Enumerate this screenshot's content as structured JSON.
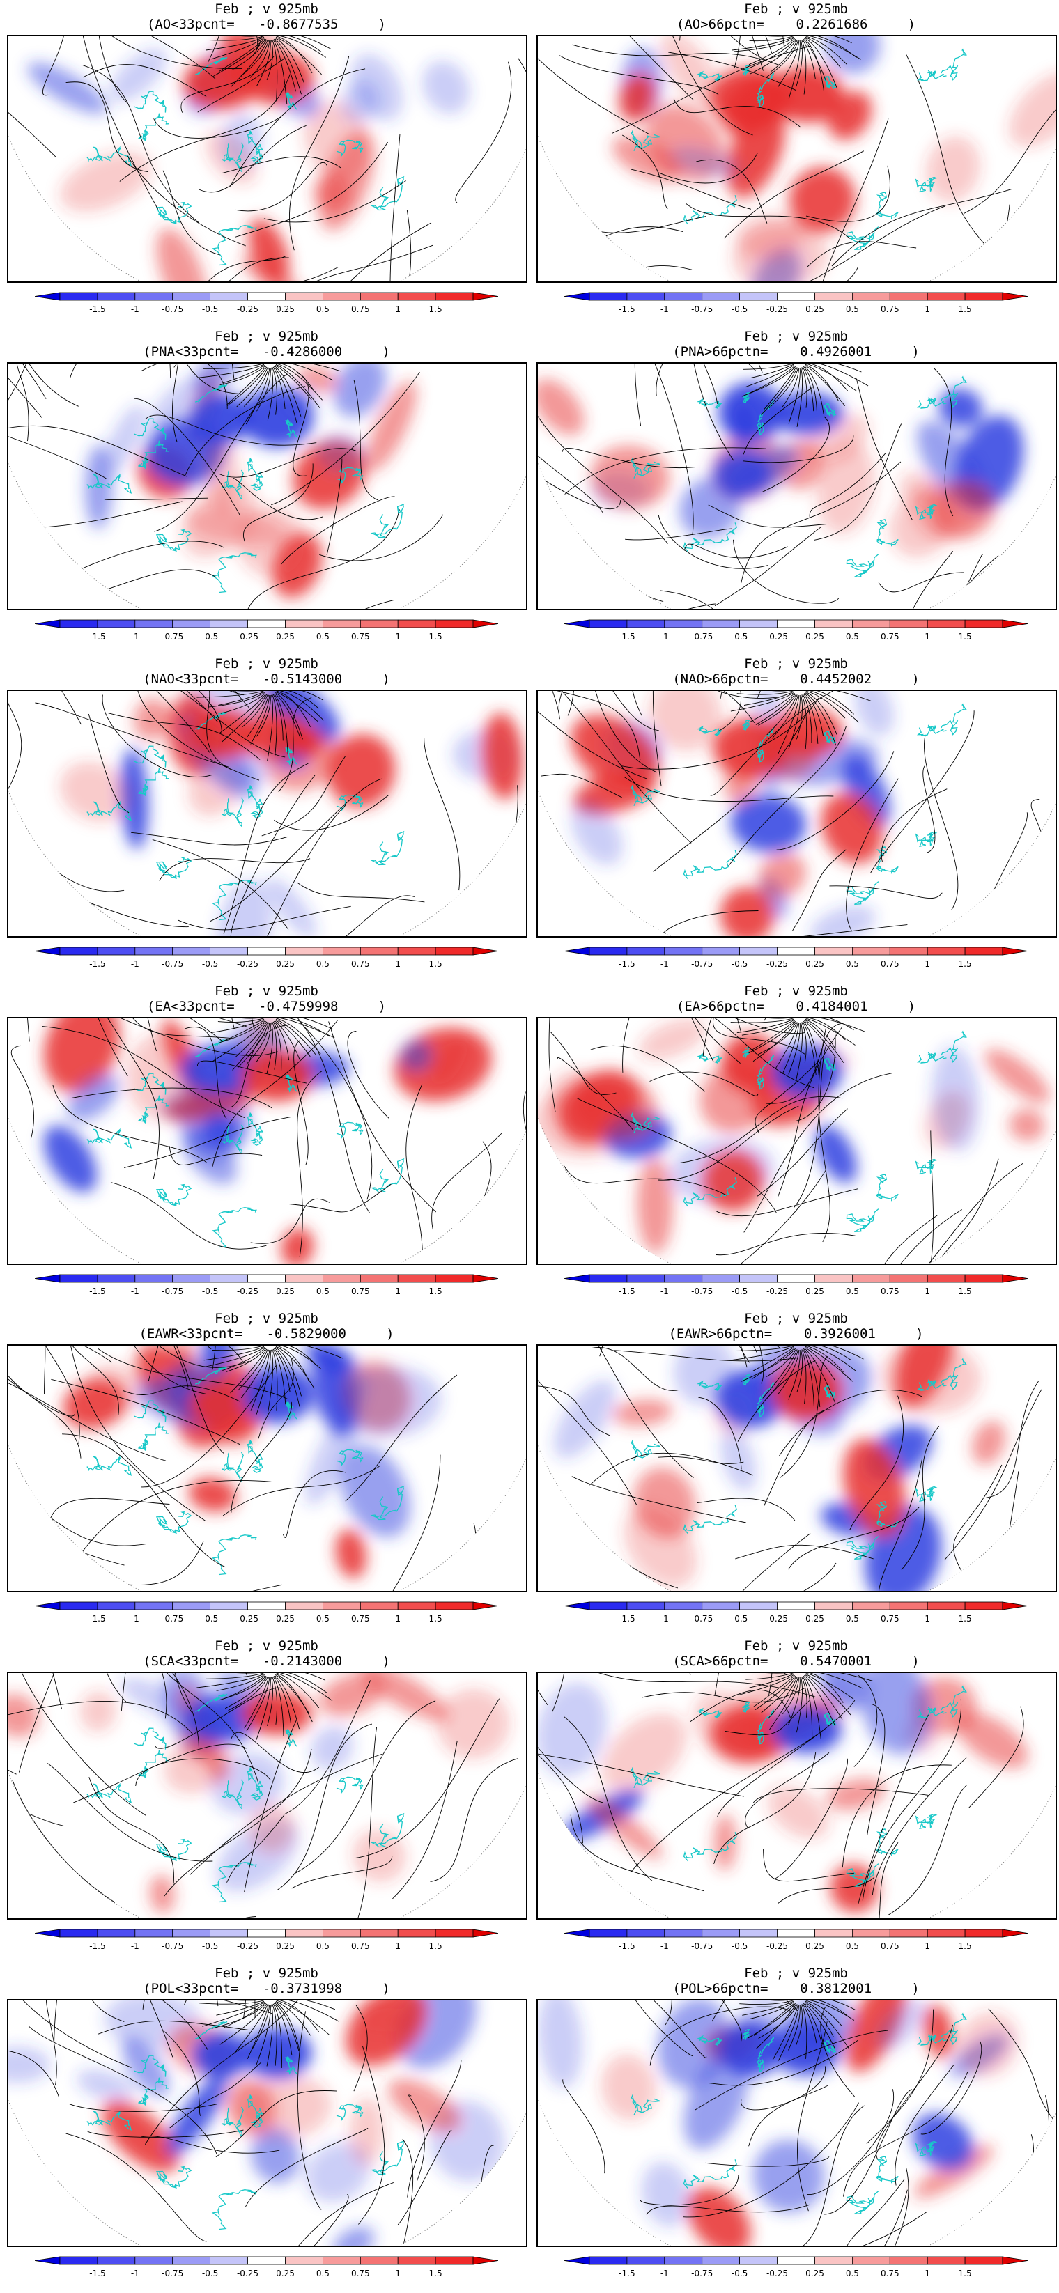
{
  "colorbar": {
    "tick_labels": [
      "-1.5",
      "-1",
      "-0.75",
      "-0.5",
      "-0.25",
      "0.25",
      "0.5",
      "0.75",
      "1",
      "1.5"
    ],
    "bin_colors": [
      "#2a2af0",
      "#4d4df2",
      "#7373f4",
      "#9b9bf6",
      "#c4c4f9",
      "#ffffff",
      "#fac4c4",
      "#f79b9b",
      "#f47373",
      "#f24d4d",
      "#f02a2a"
    ],
    "arrow_left_color": "#0000e0",
    "arrow_right_color": "#e00000"
  },
  "map_colors": {
    "streamline": "#000000",
    "coastline": "#18c8c8",
    "positive": "#e83030",
    "negative": "#2f3fe0"
  },
  "panels": [
    {
      "line1": "Feb ; v 925mb",
      "line2": "(AO<33pcnt=   -0.8677535     )"
    },
    {
      "line1": "Feb ; v 925mb",
      "line2": "(AO>66pctn=    0.2261686     )"
    },
    {
      "line1": "Feb ; v 925mb",
      "line2": "(PNA<33pcnt=   -0.4286000     )"
    },
    {
      "line1": "Feb ; v 925mb",
      "line2": "(PNA>66pctn=    0.4926001     )"
    },
    {
      "line1": "Feb ; v 925mb",
      "line2": "(NAO<33pcnt=   -0.5143000     )"
    },
    {
      "line1": "Feb ; v 925mb",
      "line2": "(NAO>66pctn=    0.4452002     )"
    },
    {
      "line1": "Feb ; v 925mb",
      "line2": "(EA<33pcnt=   -0.4759998     )"
    },
    {
      "line1": "Feb ; v 925mb",
      "line2": "(EA>66pctn=    0.4184001     )"
    },
    {
      "line1": "Feb ; v 925mb",
      "line2": "(EAWR<33pcnt=   -0.5829000     )"
    },
    {
      "line1": "Feb ; v 925mb",
      "line2": "(EAWR>66pctn=    0.3926001     )"
    },
    {
      "line1": "Feb ; v 925mb",
      "line2": "(SCA<33pcnt=   -0.2143000     )"
    },
    {
      "line1": "Feb ; v 925mb",
      "line2": "(SCA>66pctn=    0.5470001     )"
    },
    {
      "line1": "Feb ; v 925mb",
      "line2": "(POL<33pcnt=   -0.3731998     )"
    },
    {
      "line1": "Feb ; v 925mb",
      "line2": "(POL>66pctn=    0.3812001     )"
    }
  ]
}
